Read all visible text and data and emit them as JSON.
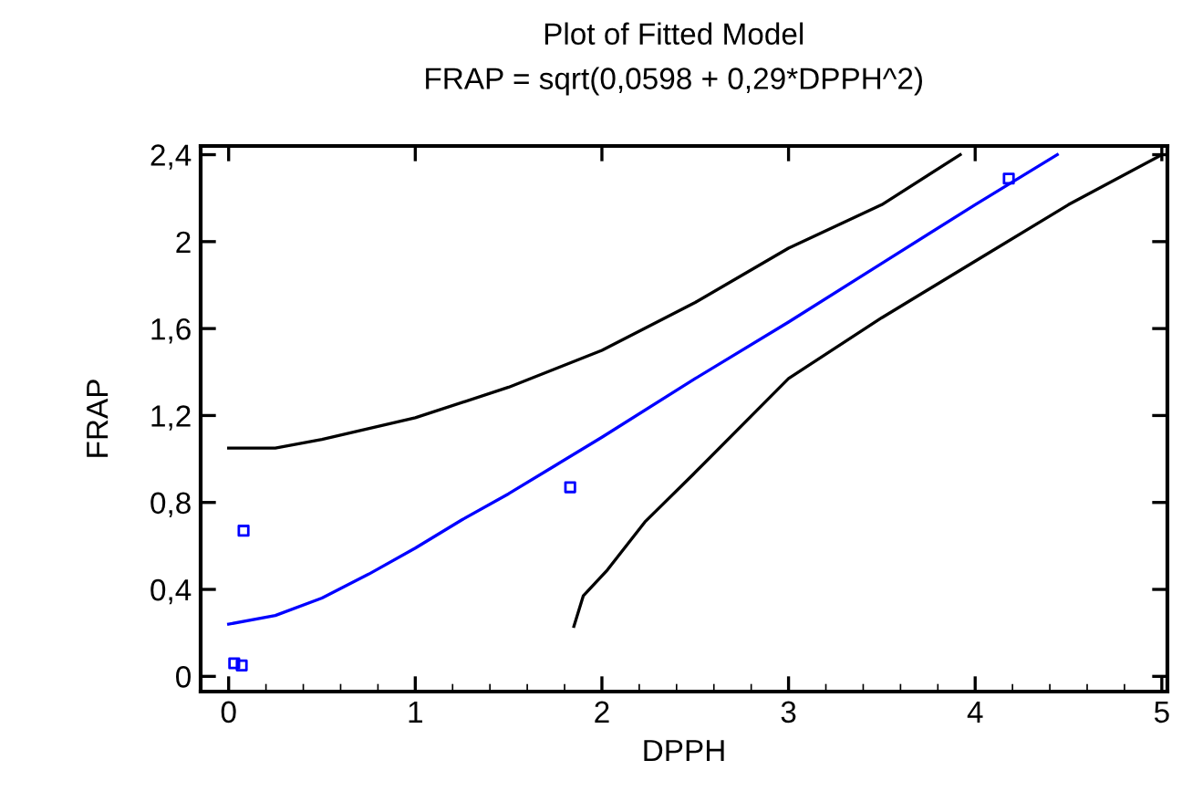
{
  "chart_data": {
    "type": "line",
    "title": "Plot of Fitted Model",
    "subtitle": "FRAP = sqrt(0,0598 + 0,29*DPPH^2)",
    "xlabel": "DPPH",
    "ylabel": "FRAP",
    "xlim": [
      -0.15,
      5.03
    ],
    "ylim": [
      -0.07,
      2.44
    ],
    "xticks": [
      0,
      1,
      2,
      3,
      4,
      5
    ],
    "yticks": [
      0,
      {
        "value": 0.4,
        "label": "0,4"
      },
      {
        "value": 0.8,
        "label": "0,8"
      },
      {
        "value": 1.2,
        "label": "1,2"
      },
      {
        "value": 1.6,
        "label": "1,6"
      },
      2,
      {
        "value": 2.4,
        "label": "2,4"
      }
    ],
    "grid": false,
    "legend": false,
    "series": [
      {
        "type": "scatter",
        "marker": "square",
        "color": "#0000ff",
        "x": [
          0.03,
          0.07,
          0.08,
          1.83,
          4.18
        ],
        "values": [
          0.06,
          0.05,
          0.67,
          0.87,
          2.29
        ]
      },
      {
        "color": "#0000ff",
        "x": [
          0,
          0.25,
          0.5,
          0.75,
          1,
          1.25,
          1.5,
          1.75,
          2,
          2.5,
          3,
          3.5,
          4,
          4.44
        ],
        "values": [
          0.24,
          0.28,
          0.36,
          0.47,
          0.59,
          0.72,
          0.84,
          0.97,
          1.1,
          1.37,
          1.63,
          1.9,
          2.17,
          2.4
        ]
      },
      {
        "color": "#000000",
        "x": [
          0,
          0.25,
          0.5,
          1,
          1.5,
          2,
          2.5,
          3,
          3.5,
          3.92
        ],
        "values": [
          1.05,
          1.05,
          1.09,
          1.19,
          1.33,
          1.5,
          1.72,
          1.97,
          2.17,
          2.4
        ]
      },
      {
        "color": "#000000",
        "x": [
          1.85,
          1.9,
          2.03,
          2.23,
          2.49,
          3,
          3.5,
          4,
          4.5,
          5
        ],
        "values": [
          0.23,
          0.37,
          0.49,
          0.71,
          0.93,
          1.37,
          1.65,
          1.91,
          2.17,
          2.4
        ]
      }
    ]
  }
}
